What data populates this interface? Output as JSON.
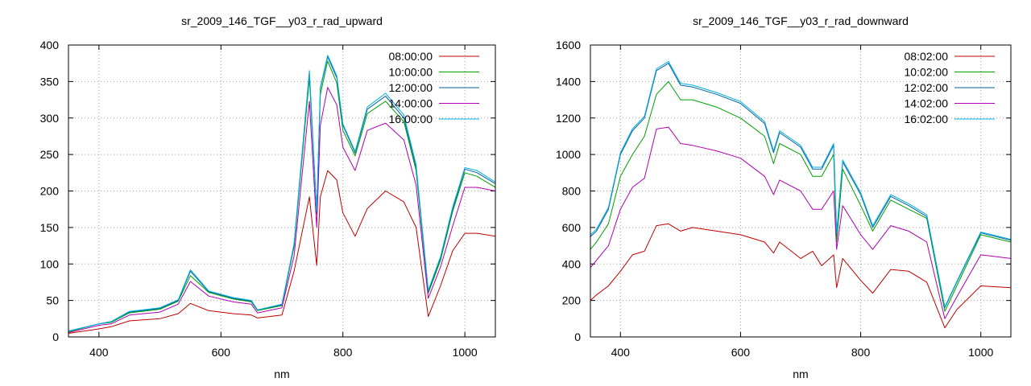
{
  "chart_data": [
    {
      "type": "line",
      "title": "sr_2009_146_TGF__y03_r_rad_upward",
      "xlabel": "nm",
      "ylabel": "",
      "xlim": [
        350,
        1050
      ],
      "ylim": [
        0,
        400
      ],
      "xticks": [
        400,
        600,
        800,
        1000
      ],
      "yticks": [
        0,
        50,
        100,
        150,
        200,
        250,
        300,
        350,
        400
      ],
      "grid": true,
      "legend_position": "top-right",
      "x": [
        350,
        400,
        420,
        450,
        500,
        530,
        550,
        580,
        620,
        650,
        660,
        700,
        720,
        745,
        757,
        763,
        775,
        790,
        800,
        820,
        840,
        870,
        900,
        920,
        940,
        960,
        980,
        1000,
        1020,
        1050
      ],
      "series": [
        {
          "name": "08:00:00",
          "color": "#c00000",
          "values": [
            5,
            11,
            14,
            22,
            25,
            32,
            46,
            36,
            32,
            30,
            26,
            30,
            90,
            192,
            98,
            192,
            228,
            215,
            170,
            138,
            176,
            200,
            185,
            150,
            28,
            70,
            118,
            142,
            142,
            138
          ]
        },
        {
          "name": "10:00:00",
          "color": "#00a000",
          "values": [
            7,
            18,
            20,
            33,
            38,
            49,
            84,
            61,
            52,
            48,
            36,
            43,
            124,
            355,
            168,
            332,
            378,
            348,
            283,
            248,
            306,
            323,
            295,
            228,
            60,
            105,
            172,
            225,
            220,
            205
          ]
        },
        {
          "name": "12:00:00",
          "color": "#0060a0",
          "values": [
            8,
            18,
            21,
            34,
            39,
            50,
            90,
            62,
            53,
            49,
            37,
            44,
            126,
            362,
            170,
            340,
            384,
            355,
            290,
            252,
            312,
            330,
            300,
            232,
            62,
            108,
            175,
            230,
            225,
            210
          ]
        },
        {
          "name": "14:00:00",
          "color": "#b000b0",
          "values": [
            6,
            16,
            18,
            30,
            34,
            45,
            76,
            56,
            48,
            45,
            33,
            40,
            111,
            323,
            150,
            290,
            342,
            318,
            260,
            228,
            283,
            293,
            270,
            208,
            53,
            96,
            152,
            205,
            205,
            200
          ]
        },
        {
          "name": "16:00:00",
          "color": "#00b0e0",
          "values": [
            8,
            18,
            21,
            35,
            40,
            51,
            92,
            63,
            54,
            50,
            37,
            45,
            128,
            365,
            172,
            342,
            386,
            358,
            292,
            254,
            315,
            334,
            304,
            236,
            64,
            110,
            178,
            232,
            228,
            212
          ]
        }
      ]
    },
    {
      "type": "line",
      "title": "sr_2009_146_TGF__y03_r_rad_downward",
      "xlabel": "nm",
      "ylabel": "",
      "xlim": [
        350,
        1050
      ],
      "ylim": [
        0,
        1600
      ],
      "xticks": [
        400,
        600,
        800,
        1000
      ],
      "yticks": [
        0,
        200,
        400,
        600,
        800,
        1000,
        1200,
        1400,
        1600
      ],
      "grid": true,
      "legend_position": "top-right",
      "x": [
        350,
        360,
        380,
        400,
        420,
        440,
        460,
        480,
        500,
        520,
        560,
        600,
        640,
        655,
        665,
        700,
        720,
        735,
        755,
        760,
        770,
        800,
        820,
        850,
        880,
        910,
        940,
        960,
        1000,
        1050
      ],
      "series": [
        {
          "name": "08:02:00",
          "color": "#c00000",
          "values": [
            200,
            230,
            280,
            360,
            450,
            470,
            610,
            620,
            580,
            600,
            580,
            560,
            520,
            460,
            520,
            430,
            470,
            390,
            450,
            270,
            430,
            310,
            240,
            370,
            360,
            300,
            50,
            150,
            280,
            270
          ]
        },
        {
          "name": "10:02:00",
          "color": "#00a000",
          "values": [
            480,
            520,
            620,
            880,
            1000,
            1100,
            1330,
            1400,
            1300,
            1300,
            1260,
            1200,
            1100,
            950,
            1060,
            1000,
            880,
            880,
            1000,
            520,
            920,
            720,
            580,
            750,
            700,
            650,
            140,
            280,
            560,
            520
          ]
        },
        {
          "name": "12:02:00",
          "color": "#0060a0",
          "values": [
            550,
            580,
            700,
            1000,
            1130,
            1200,
            1460,
            1500,
            1380,
            1370,
            1330,
            1280,
            1170,
            1010,
            1120,
            1040,
            920,
            920,
            1050,
            560,
            960,
            780,
            600,
            770,
            720,
            660,
            160,
            300,
            570,
            530
          ]
        },
        {
          "name": "14:02:00",
          "color": "#b000b0",
          "values": [
            380,
            420,
            500,
            700,
            820,
            870,
            1140,
            1150,
            1060,
            1050,
            1020,
            980,
            880,
            780,
            860,
            800,
            700,
            700,
            800,
            480,
            720,
            560,
            480,
            610,
            580,
            520,
            100,
            220,
            450,
            430
          ]
        },
        {
          "name": "16:02:00",
          "color": "#00b0e0",
          "values": [
            560,
            590,
            710,
            1010,
            1140,
            1210,
            1470,
            1510,
            1390,
            1380,
            1340,
            1290,
            1180,
            1020,
            1130,
            1050,
            930,
            930,
            1060,
            570,
            970,
            790,
            610,
            780,
            730,
            670,
            165,
            305,
            575,
            535
          ]
        }
      ]
    }
  ]
}
